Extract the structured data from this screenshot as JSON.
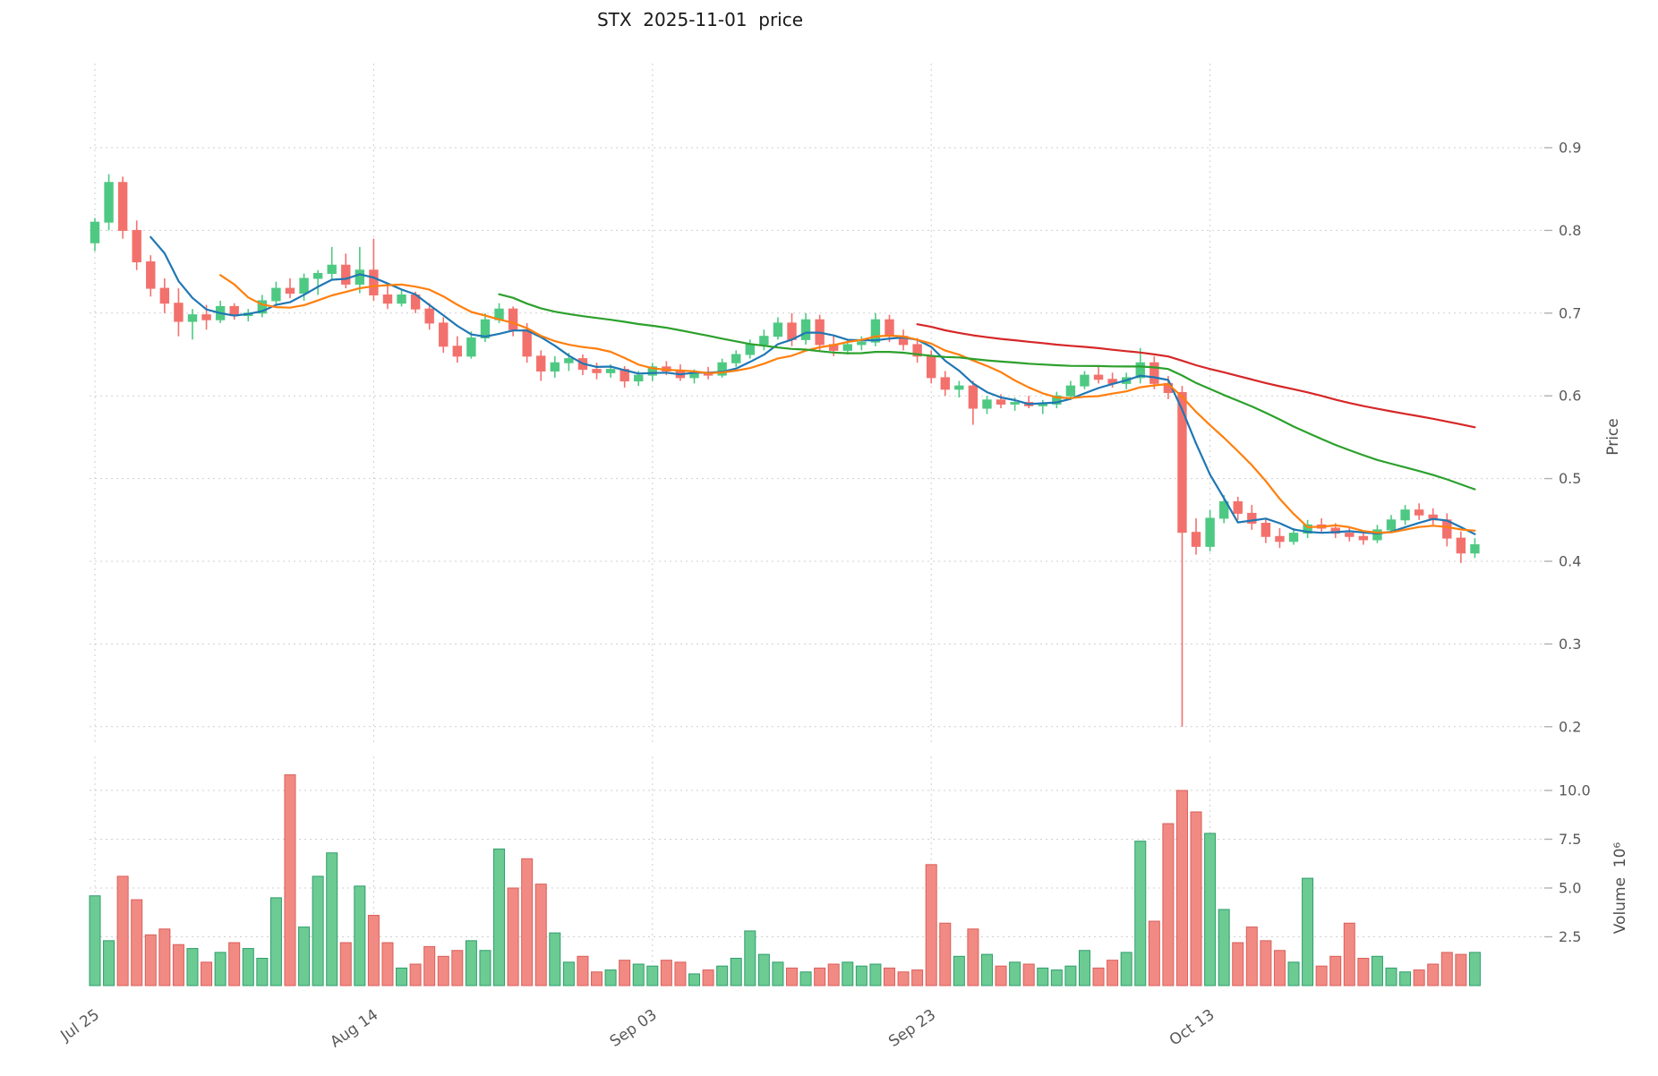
{
  "title": "STX  2025-11-01  price",
  "chart_data": {
    "type": "candlestick",
    "title": "STX  2025-11-01  price",
    "panels": [
      "price",
      "volume"
    ],
    "x_ticks": {
      "indices": [
        0,
        20,
        40,
        60,
        80
      ],
      "labels": [
        "Jul 25",
        "Aug 14",
        "Sep 03",
        "Sep 23",
        "Oct 13"
      ]
    },
    "price_axis": {
      "label": "Price",
      "ticks": [
        0.2,
        0.3,
        0.4,
        0.5,
        0.6,
        0.7,
        0.8,
        0.9
      ],
      "range": [
        0.177,
        1.0
      ]
    },
    "volume_axis": {
      "label": "Volume",
      "unit": "10⁶",
      "ticks": [
        2.5,
        5.0,
        7.5,
        10.0
      ],
      "range": [
        0,
        11.7
      ]
    },
    "moving_averages": [
      {
        "name": "ma-5",
        "window": 5,
        "color": "#1f77b4"
      },
      {
        "name": "ma-10",
        "window": 10,
        "color": "#ff7f0e"
      },
      {
        "name": "ma-30",
        "window": 30,
        "color": "#2ca02c"
      },
      {
        "name": "ma-60",
        "window": 60,
        "color": "#d62728"
      }
    ],
    "colors": {
      "up": "#4ec983",
      "down": "#f3716c",
      "up_volume": "#6bcb92",
      "down_volume": "#f28a84",
      "up_volume_edge": "#2f9e6d",
      "down_volume_edge": "#d95f5a",
      "grid": "#cfcfcf",
      "tick_text": "#595959"
    },
    "ohlc": [
      [
        0.785,
        0.815,
        0.775,
        0.81
      ],
      [
        0.81,
        0.868,
        0.8,
        0.858
      ],
      [
        0.858,
        0.865,
        0.79,
        0.8
      ],
      [
        0.8,
        0.812,
        0.752,
        0.762
      ],
      [
        0.762,
        0.77,
        0.72,
        0.73
      ],
      [
        0.73,
        0.742,
        0.7,
        0.712
      ],
      [
        0.712,
        0.73,
        0.672,
        0.69
      ],
      [
        0.69,
        0.705,
        0.668,
        0.698
      ],
      [
        0.698,
        0.71,
        0.68,
        0.692
      ],
      [
        0.692,
        0.715,
        0.688,
        0.708
      ],
      [
        0.708,
        0.712,
        0.692,
        0.697
      ],
      [
        0.697,
        0.705,
        0.69,
        0.7
      ],
      [
        0.7,
        0.722,
        0.695,
        0.715
      ],
      [
        0.715,
        0.738,
        0.71,
        0.73
      ],
      [
        0.73,
        0.742,
        0.718,
        0.724
      ],
      [
        0.724,
        0.748,
        0.715,
        0.742
      ],
      [
        0.742,
        0.752,
        0.722,
        0.748
      ],
      [
        0.748,
        0.78,
        0.74,
        0.758
      ],
      [
        0.758,
        0.772,
        0.73,
        0.735
      ],
      [
        0.735,
        0.78,
        0.724,
        0.752
      ],
      [
        0.752,
        0.79,
        0.715,
        0.722
      ],
      [
        0.722,
        0.735,
        0.705,
        0.712
      ],
      [
        0.712,
        0.728,
        0.708,
        0.722
      ],
      [
        0.722,
        0.726,
        0.7,
        0.705
      ],
      [
        0.705,
        0.712,
        0.68,
        0.688
      ],
      [
        0.688,
        0.695,
        0.652,
        0.66
      ],
      [
        0.66,
        0.672,
        0.64,
        0.648
      ],
      [
        0.648,
        0.678,
        0.645,
        0.67
      ],
      [
        0.67,
        0.7,
        0.665,
        0.692
      ],
      [
        0.692,
        0.712,
        0.688,
        0.705
      ],
      [
        0.705,
        0.708,
        0.672,
        0.68
      ],
      [
        0.68,
        0.688,
        0.64,
        0.648
      ],
      [
        0.648,
        0.655,
        0.618,
        0.63
      ],
      [
        0.63,
        0.648,
        0.622,
        0.64
      ],
      [
        0.64,
        0.652,
        0.63,
        0.645
      ],
      [
        0.645,
        0.65,
        0.625,
        0.632
      ],
      [
        0.632,
        0.64,
        0.62,
        0.628
      ],
      [
        0.628,
        0.638,
        0.622,
        0.632
      ],
      [
        0.632,
        0.636,
        0.61,
        0.618
      ],
      [
        0.618,
        0.63,
        0.612,
        0.625
      ],
      [
        0.625,
        0.64,
        0.618,
        0.635
      ],
      [
        0.635,
        0.642,
        0.625,
        0.63
      ],
      [
        0.63,
        0.638,
        0.618,
        0.622
      ],
      [
        0.622,
        0.632,
        0.615,
        0.628
      ],
      [
        0.628,
        0.635,
        0.62,
        0.625
      ],
      [
        0.625,
        0.645,
        0.622,
        0.64
      ],
      [
        0.64,
        0.655,
        0.635,
        0.65
      ],
      [
        0.65,
        0.668,
        0.645,
        0.662
      ],
      [
        0.662,
        0.68,
        0.655,
        0.672
      ],
      [
        0.672,
        0.695,
        0.668,
        0.688
      ],
      [
        0.688,
        0.7,
        0.66,
        0.668
      ],
      [
        0.668,
        0.7,
        0.662,
        0.692
      ],
      [
        0.692,
        0.698,
        0.655,
        0.662
      ],
      [
        0.662,
        0.672,
        0.648,
        0.655
      ],
      [
        0.655,
        0.668,
        0.65,
        0.662
      ],
      [
        0.662,
        0.672,
        0.655,
        0.665
      ],
      [
        0.665,
        0.7,
        0.66,
        0.692
      ],
      [
        0.692,
        0.698,
        0.665,
        0.672
      ],
      [
        0.672,
        0.68,
        0.655,
        0.662
      ],
      [
        0.662,
        0.67,
        0.64,
        0.648
      ],
      [
        0.648,
        0.655,
        0.615,
        0.622
      ],
      [
        0.622,
        0.63,
        0.6,
        0.608
      ],
      [
        0.608,
        0.618,
        0.598,
        0.612
      ],
      [
        0.612,
        0.618,
        0.565,
        0.585
      ],
      [
        0.585,
        0.6,
        0.578,
        0.595
      ],
      [
        0.595,
        0.602,
        0.585,
        0.59
      ],
      [
        0.59,
        0.598,
        0.582,
        0.592
      ],
      [
        0.592,
        0.6,
        0.585,
        0.588
      ],
      [
        0.588,
        0.595,
        0.578,
        0.59
      ],
      [
        0.59,
        0.605,
        0.585,
        0.6
      ],
      [
        0.6,
        0.618,
        0.595,
        0.612
      ],
      [
        0.612,
        0.63,
        0.608,
        0.625
      ],
      [
        0.625,
        0.635,
        0.615,
        0.62
      ],
      [
        0.62,
        0.628,
        0.61,
        0.615
      ],
      [
        0.615,
        0.628,
        0.608,
        0.622
      ],
      [
        0.622,
        0.658,
        0.615,
        0.64
      ],
      [
        0.64,
        0.648,
        0.608,
        0.615
      ],
      [
        0.615,
        0.624,
        0.596,
        0.604
      ],
      [
        0.604,
        0.612,
        0.2,
        0.435
      ],
      [
        0.435,
        0.452,
        0.408,
        0.418
      ],
      [
        0.418,
        0.462,
        0.412,
        0.452
      ],
      [
        0.452,
        0.48,
        0.446,
        0.472
      ],
      [
        0.472,
        0.478,
        0.45,
        0.458
      ],
      [
        0.458,
        0.468,
        0.438,
        0.446
      ],
      [
        0.446,
        0.452,
        0.422,
        0.43
      ],
      [
        0.43,
        0.44,
        0.416,
        0.424
      ],
      [
        0.424,
        0.44,
        0.42,
        0.434
      ],
      [
        0.434,
        0.45,
        0.428,
        0.444
      ],
      [
        0.444,
        0.452,
        0.434,
        0.44
      ],
      [
        0.44,
        0.446,
        0.428,
        0.434
      ],
      [
        0.434,
        0.442,
        0.424,
        0.43
      ],
      [
        0.43,
        0.436,
        0.42,
        0.426
      ],
      [
        0.426,
        0.444,
        0.422,
        0.438
      ],
      [
        0.438,
        0.456,
        0.434,
        0.45
      ],
      [
        0.45,
        0.468,
        0.444,
        0.462
      ],
      [
        0.462,
        0.47,
        0.45,
        0.456
      ],
      [
        0.456,
        0.464,
        0.444,
        0.45
      ],
      [
        0.45,
        0.458,
        0.418,
        0.428
      ],
      [
        0.428,
        0.436,
        0.398,
        0.41
      ],
      [
        0.41,
        0.428,
        0.404,
        0.42
      ]
    ],
    "volume": [
      4.6,
      2.3,
      5.6,
      4.4,
      2.6,
      2.9,
      2.1,
      1.9,
      1.2,
      1.7,
      2.2,
      1.9,
      1.4,
      4.5,
      10.8,
      3.0,
      5.6,
      6.8,
      2.2,
      5.1,
      3.6,
      2.2,
      0.9,
      1.1,
      2.0,
      1.5,
      1.8,
      2.3,
      1.8,
      7.0,
      5.0,
      6.5,
      5.2,
      2.7,
      1.2,
      1.5,
      0.7,
      0.8,
      1.3,
      1.1,
      1.0,
      1.3,
      1.2,
      0.6,
      0.8,
      1.0,
      1.4,
      2.8,
      1.6,
      1.2,
      0.9,
      0.7,
      0.9,
      1.1,
      1.2,
      1.0,
      1.1,
      0.9,
      0.7,
      0.8,
      6.2,
      3.2,
      1.5,
      2.9,
      1.6,
      1.0,
      1.2,
      1.1,
      0.9,
      0.8,
      1.0,
      1.8,
      0.9,
      1.3,
      1.7,
      7.4,
      3.3,
      8.3,
      10.0,
      8.9,
      7.8,
      3.9,
      2.2,
      3.0,
      2.3,
      1.8,
      1.2,
      5.5,
      1.0,
      1.5,
      3.2,
      1.4,
      1.5,
      0.9,
      0.7,
      0.8,
      1.1,
      1.7,
      1.6,
      1.7
    ]
  }
}
